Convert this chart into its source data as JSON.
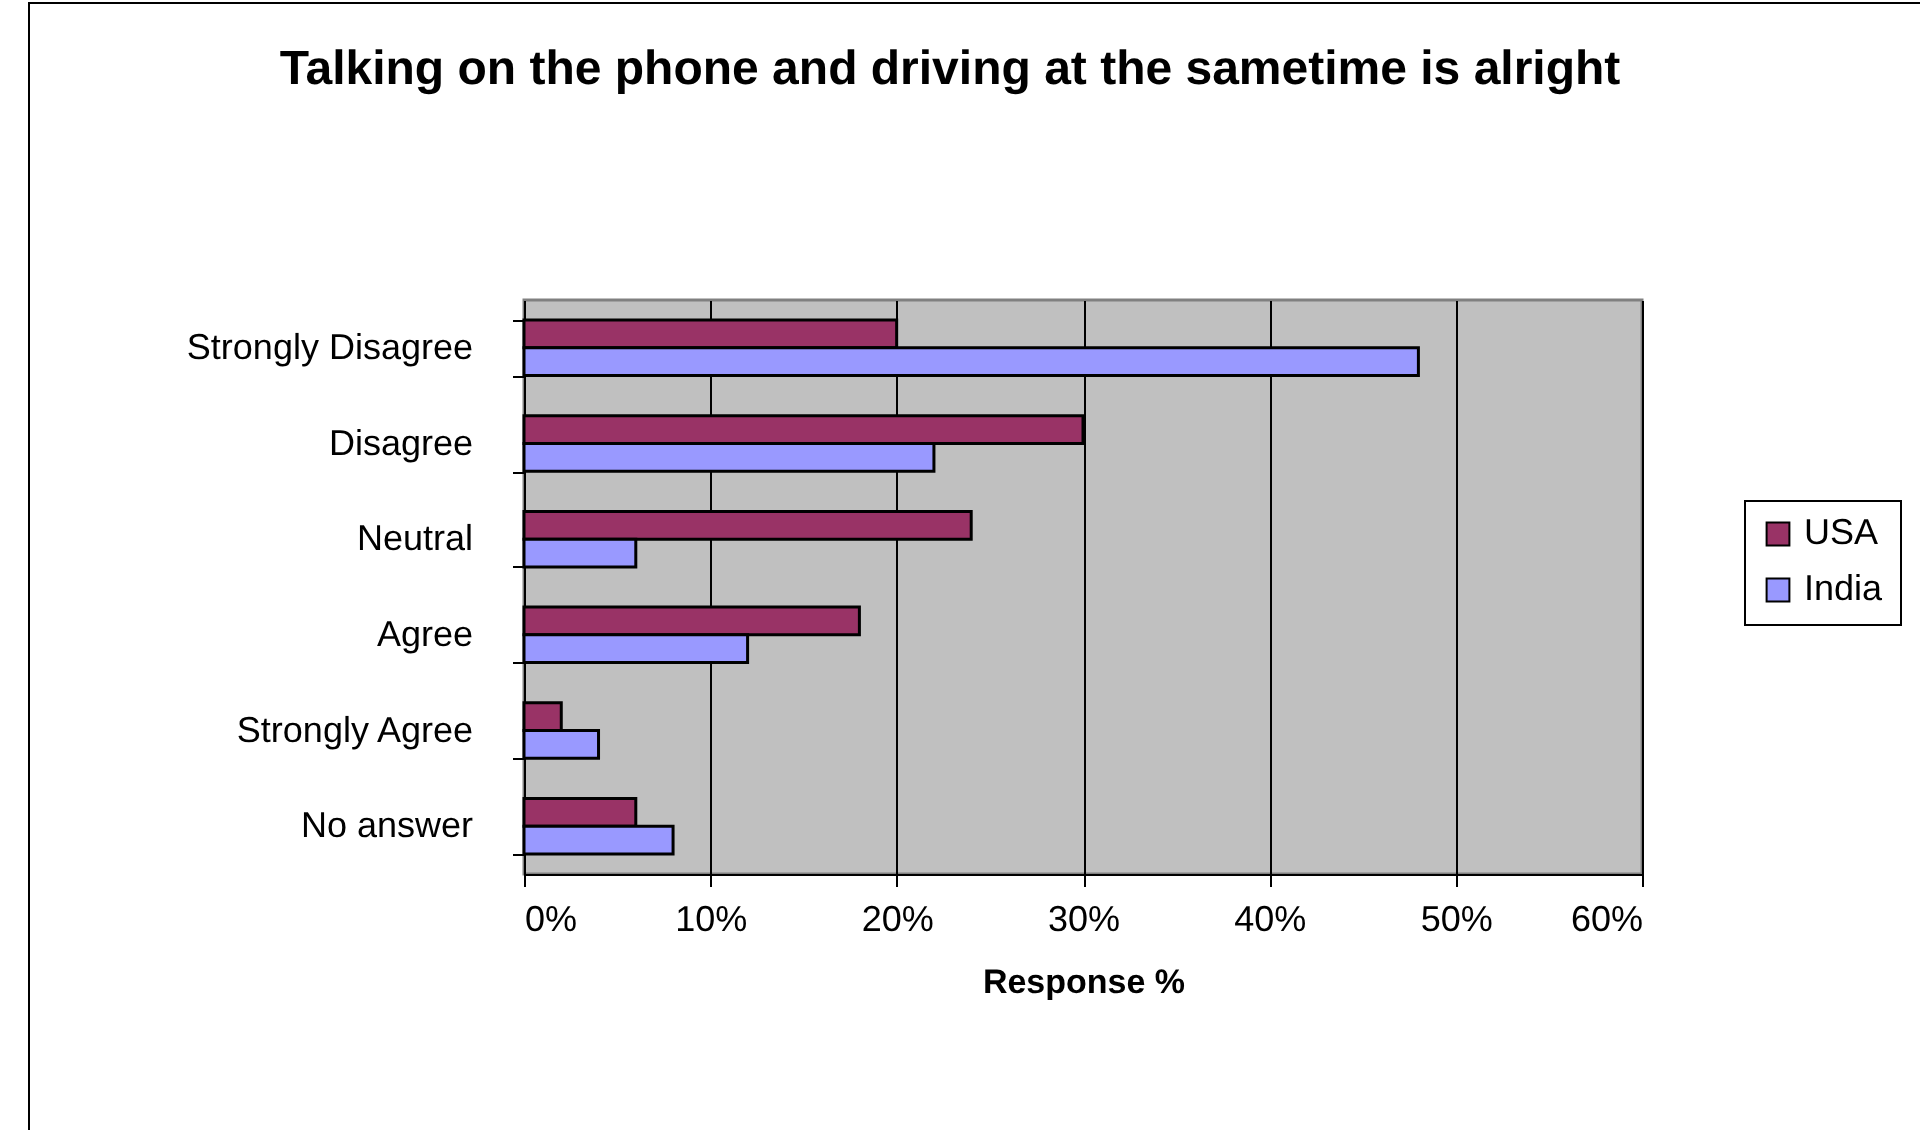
{
  "chart_data": {
    "type": "bar",
    "orientation": "horizontal",
    "title": "Talking on the phone and driving at the sametime is alright",
    "xlabel": "Response %",
    "categories": [
      "Strongly Disagree",
      "Disagree",
      "Neutral",
      "Agree",
      "Strongly Agree",
      "No answer"
    ],
    "series": [
      {
        "name": "USA",
        "color": "#993366",
        "values": [
          20,
          30,
          24,
          18,
          2,
          6
        ]
      },
      {
        "name": "India",
        "color": "#9999ff",
        "values": [
          48,
          22,
          6,
          12,
          4,
          8
        ]
      }
    ],
    "xlim": [
      0,
      60
    ],
    "xticks": [
      {
        "value": 0,
        "label": "0%"
      },
      {
        "value": 10,
        "label": "10%"
      },
      {
        "value": 20,
        "label": "20%"
      },
      {
        "value": 30,
        "label": "30%"
      },
      {
        "value": 40,
        "label": "40%"
      },
      {
        "value": 50,
        "label": "50%"
      },
      {
        "value": 60,
        "label": "60%"
      }
    ],
    "grid": "x",
    "legend": "right"
  }
}
